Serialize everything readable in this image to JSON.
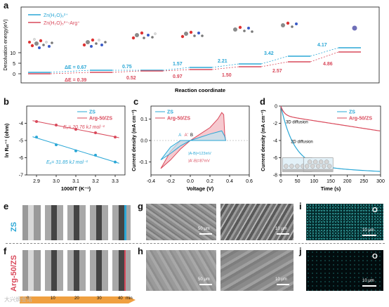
{
  "panel_letters": [
    "a",
    "b",
    "c",
    "d",
    "e",
    "f",
    "g",
    "h",
    "i",
    "j"
  ],
  "panel_a": {
    "legend": [
      "Zn(H₂O)₆²⁺",
      "Zn(H₂O)₅²⁺-Arg⁺"
    ],
    "ylabel": "Desolvation energy(eV)",
    "xlabel": "Reaction coordinate",
    "yticks": [
      "0",
      "5",
      "10"
    ],
    "zs_values": [
      "0.67",
      "0.75",
      "1.57",
      "2.21",
      "3.42",
      "4.17"
    ],
    "arg_values": [
      "0.39",
      "0.52",
      "0.97",
      "1.50",
      "2.57",
      "4.86"
    ],
    "de_zs": "ΔE = 0.67",
    "de_arg": "ΔE = 0.39",
    "colors": {
      "zs": "#2aa7d6",
      "arg": "#d9485a"
    }
  },
  "chart_data": [
    {
      "type": "scatter",
      "title": "",
      "xlabel": "1000/T (K⁻¹)",
      "ylabel": "ln Rₛₜ⁻¹ (ohm)",
      "xlim": [
        2.85,
        3.35
      ],
      "ylim": [
        -7,
        -3
      ],
      "xticks": [
        "2.9",
        "3.0",
        "3.1",
        "3.2",
        "3.3"
      ],
      "yticks": [
        "-4",
        "-5",
        "-6",
        "-7"
      ],
      "legend": [
        "ZS",
        "Arg-50/ZS"
      ],
      "annotations": [
        "Eₐ= 20.76 kJ mol⁻¹",
        "Eₐ= 31.85 kJ mol⁻¹"
      ],
      "series": [
        {
          "name": "ZS",
          "x": [
            2.9,
            3.0,
            3.1,
            3.2,
            3.3
          ],
          "y": [
            -4.8,
            -5.25,
            -5.6,
            -5.85,
            -6.25
          ]
        },
        {
          "name": "Arg-50/ZS",
          "x": [
            2.9,
            3.0,
            3.1,
            3.2,
            3.3
          ],
          "y": [
            -3.9,
            -4.1,
            -4.35,
            -4.55,
            -4.8
          ]
        }
      ]
    },
    {
      "type": "line",
      "title": "",
      "xlabel": "Voltage (V)",
      "ylabel": "Current density (mA cm⁻²)",
      "xlim": [
        -0.4,
        0.6
      ],
      "ylim": [
        -0.16,
        0.16
      ],
      "xticks": [
        "-0.4",
        "-0.2",
        "0.0",
        "0.2",
        "0.4",
        "0.6"
      ],
      "yticks": [
        "0.1",
        "0.0",
        "-0.1"
      ],
      "legend": [
        "ZS",
        "Arg-50/ZS"
      ],
      "annotations": [
        "A",
        "A'",
        "B",
        "|A-B|=123mV",
        "|A'-B|=87mV"
      ]
    },
    {
      "type": "line",
      "title": "",
      "xlabel": "Time (s)",
      "ylabel": "Current density (mA cm⁻²)",
      "xlim": [
        0,
        300
      ],
      "ylim": [
        -8,
        0
      ],
      "xticks": [
        "0",
        "50",
        "100",
        "150",
        "200",
        "250",
        "300"
      ],
      "yticks": [
        "0",
        "-2",
        "-4",
        "-6",
        "-8"
      ],
      "legend": [
        "ZS",
        "Arg-50/ZS"
      ],
      "annotations": [
        "3D diffusion",
        "2D diffusion"
      ]
    }
  ],
  "panel_e": {
    "label": "ZS"
  },
  "panel_f": {
    "label": "Arg-50/ZS",
    "axis": [
      "0",
      "10",
      "20",
      "30",
      "40",
      "min"
    ]
  },
  "scale_labels": {
    "g1": "50 μm",
    "g2": "10 μm",
    "h1": "50 μm",
    "h2": "10 μm",
    "i": "10 μm",
    "j": "10 μm"
  },
  "eds_element": "O",
  "watermark": "大兴炯金洛"
}
